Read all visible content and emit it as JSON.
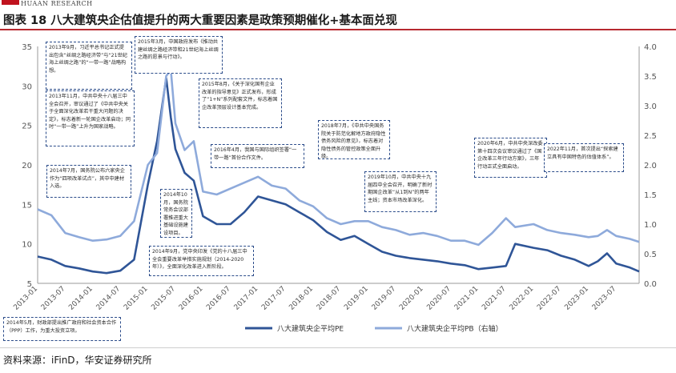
{
  "header": {
    "brand_sub": "HUAAN RESEARCH",
    "title": "图表 18 八大建筑央企估值提升的两大重要因素是政策预期催化+基本面兑现",
    "source": "资料来源：iFinD，华安证券研究所"
  },
  "colors": {
    "brand_red": "#c0121e",
    "pe": "#2f5597",
    "pb": "#8eaadb",
    "annotation_border": "#2b4c8a"
  },
  "annotations": [
    "2013年9月，习近平总书记正式提出包含“丝绸之路经济带”与“21世纪海上丝绸之路”的“一带一路”战略构想。",
    "2013年11月，中共中央十八届三中全会召开，审议通过了《中共中央关于全面深化改革若干重大问题的决定》，标志着新一轮国企改革启动；同时“一带一路”上升为国家战略。",
    "2014年7月，国务院公布六家央企作为“四项改革试点”，其中中建材入选。",
    "2014年10月，国务院常务会议部署推进重大基础设施建设项目。",
    "2014年9月，党中央印发《党的十八届三中全会重要改革举措实施规划（2014-2020年）》，全面深化改革进入新阶段。",
    "2015年3月，中国政府发布《推动共建丝绸之路经济带和21世纪海上丝绸之路的愿景与行动》。",
    "2015年8月，《关于深化国有企业改革的指导意见》正式发布，形成了“1+N”系列配套文件，标志着国企改革顶层设计基本完成。",
    "2016年4月，我国与国际组织签署“一带一路”首份合作文件。",
    "2018年7月，《中共中央国务院关于防范化解地方政府隐性债务风险的意见》，标志着对隐性债务的管控政策全面升级。",
    "2019年10月，中共中央十九届四中全会召开，明确了新时期国企改革“从1到N”的两年主线；资本市场改革深化。",
    "2020年6月，中共中央深改委第十四次会议审议通过了《国企改革三年行动方案》，三年行动正式全面启动。",
    "2022年11月，首次提出“探索建立具有中国特色的估值体系”。",
    "2014年5月，财政部提出推广政府和社会资本合作（PPP）工作，为重大投资立项。"
  ],
  "chart_data": {
    "type": "line",
    "title": "",
    "xlabel": "",
    "ylabel": "",
    "x_tick_labels": [
      "2013-01",
      "2013-07",
      "2014-01",
      "2014-07",
      "2015-01",
      "2015-07",
      "2016-01",
      "2016-07",
      "2017-01",
      "2017-07",
      "2018-01",
      "2018-07",
      "2019-01",
      "2019-07",
      "2020-01",
      "2020-07",
      "2021-01",
      "2021-07",
      "2022-01",
      "2022-07",
      "2023-01",
      "2023-07"
    ],
    "y_left": {
      "range": [
        5,
        35
      ],
      "ticks": [
        5,
        10,
        15,
        20,
        25,
        30,
        35
      ]
    },
    "y_right": {
      "range": [
        0,
        4.0
      ],
      "ticks": [
        "0.0",
        "0.5",
        "1.0",
        "1.5",
        "2.0",
        "2.5",
        "3.0",
        "3.5",
        "4.0"
      ]
    },
    "grid": false,
    "legend_position": "bottom",
    "x": [
      "2013-01",
      "2013-04",
      "2013-07",
      "2013-10",
      "2014-01",
      "2014-04",
      "2014-07",
      "2014-10",
      "2015-01",
      "2015-03",
      "2015-05",
      "2015-06",
      "2015-07",
      "2015-09",
      "2015-11",
      "2016-01",
      "2016-04",
      "2016-07",
      "2016-10",
      "2017-01",
      "2017-04",
      "2017-07",
      "2017-10",
      "2018-01",
      "2018-04",
      "2018-07",
      "2018-10",
      "2019-01",
      "2019-04",
      "2019-07",
      "2019-10",
      "2020-01",
      "2020-04",
      "2020-07",
      "2020-10",
      "2021-01",
      "2021-04",
      "2021-07",
      "2021-09",
      "2022-01",
      "2022-04",
      "2022-07",
      "2022-10",
      "2023-01",
      "2023-03",
      "2023-05",
      "2023-07",
      "2023-10",
      "2023-12"
    ],
    "series": [
      {
        "name": "八大建筑央企平均PE",
        "axis": "left",
        "color": "#2f5597",
        "values": [
          8.4,
          8.0,
          7.2,
          6.9,
          6.5,
          6.3,
          6.6,
          8.0,
          17.5,
          23.0,
          31.0,
          26.0,
          22.0,
          19.0,
          18.0,
          13.5,
          12.5,
          12.5,
          14.0,
          16.0,
          15.5,
          15.0,
          14.0,
          13.0,
          11.5,
          10.5,
          11.0,
          10.0,
          9.0,
          8.5,
          8.2,
          8.0,
          7.8,
          7.5,
          7.3,
          6.8,
          7.0,
          7.2,
          10.0,
          9.5,
          9.2,
          8.5,
          8.0,
          7.2,
          7.8,
          8.8,
          7.5,
          7.0,
          6.5
        ]
      },
      {
        "name": "八大建筑央企平均PB（右轴）",
        "axis": "right",
        "color": "#8eaadb",
        "values": [
          1.25,
          1.15,
          0.85,
          0.78,
          0.72,
          0.74,
          0.8,
          1.05,
          2.0,
          2.2,
          3.5,
          3.6,
          2.7,
          2.25,
          2.4,
          1.55,
          1.5,
          1.6,
          1.7,
          1.8,
          1.65,
          1.6,
          1.4,
          1.3,
          1.1,
          1.0,
          1.05,
          1.05,
          0.95,
          0.9,
          0.82,
          0.85,
          0.8,
          0.72,
          0.72,
          0.65,
          0.85,
          1.1,
          0.95,
          1.0,
          0.9,
          0.85,
          0.82,
          0.78,
          0.8,
          0.9,
          0.8,
          0.75,
          0.7
        ]
      }
    ]
  }
}
